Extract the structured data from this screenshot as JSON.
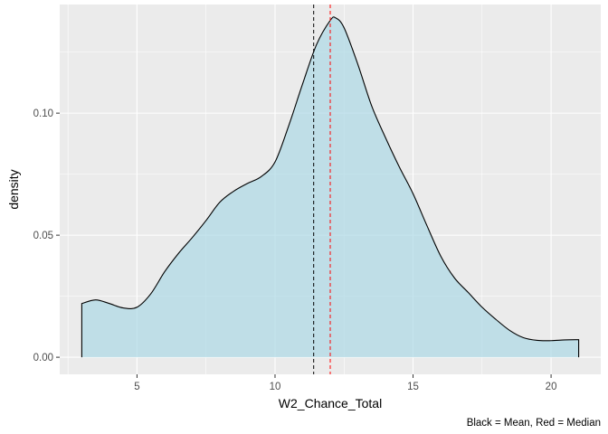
{
  "chart_data": {
    "type": "area",
    "subtype": "density",
    "xlabel": "W2_Chance_Total",
    "ylabel": "density",
    "caption": "Black = Mean, Red = Median",
    "xlim": [
      2.2,
      21.8
    ],
    "ylim": [
      -0.007,
      0.1445
    ],
    "x_ticks": [
      5,
      10,
      15,
      20
    ],
    "x_tick_labels": [
      "5",
      "10",
      "15",
      "20"
    ],
    "y_ticks": [
      0.0,
      0.05,
      0.1
    ],
    "y_tick_labels": [
      "0.00",
      "0.05",
      "0.10"
    ],
    "grid": true,
    "fill_color": "#add8e6",
    "fill_opacity": 0.7,
    "line_color": "#000000",
    "panel_background": "#ebebeb",
    "grid_color": "#ffffff",
    "mean": 11.4,
    "mean_color": "#000000",
    "median": 12,
    "median_color": "#ff0000",
    "x": [
      3.0,
      3.5,
      4.0,
      4.5,
      5.0,
      5.5,
      6.0,
      6.5,
      7.0,
      7.5,
      8.0,
      8.5,
      9.0,
      9.5,
      10.0,
      10.5,
      11.0,
      11.5,
      12.0,
      12.2,
      12.5,
      13.0,
      13.5,
      14.0,
      14.5,
      15.0,
      15.5,
      16.0,
      16.5,
      17.0,
      17.5,
      18.0,
      18.5,
      19.0,
      19.5,
      20.0,
      20.5,
      21.0
    ],
    "y": [
      0.022,
      0.0235,
      0.022,
      0.0202,
      0.0205,
      0.026,
      0.035,
      0.0425,
      0.049,
      0.056,
      0.0635,
      0.068,
      0.0712,
      0.074,
      0.08,
      0.095,
      0.112,
      0.128,
      0.138,
      0.139,
      0.135,
      0.12,
      0.103,
      0.09,
      0.078,
      0.067,
      0.054,
      0.0415,
      0.0325,
      0.0265,
      0.0205,
      0.0155,
      0.011,
      0.008,
      0.0069,
      0.0068,
      0.0071,
      0.0072
    ]
  }
}
